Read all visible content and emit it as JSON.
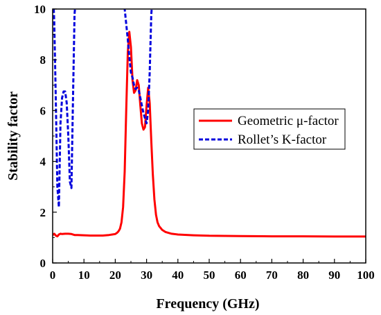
{
  "chart_data": {
    "type": "line",
    "xlabel": "Frequency (GHz)",
    "ylabel": "Stability factor",
    "xlim": [
      0,
      100
    ],
    "ylim": [
      0,
      10
    ],
    "x_ticks": [
      0,
      10,
      20,
      30,
      40,
      50,
      60,
      70,
      80,
      90,
      100
    ],
    "y_ticks": [
      0,
      2,
      4,
      6,
      8,
      10
    ],
    "grid": false,
    "legend_position": "right-center",
    "series": [
      {
        "name": "Geometric μ-factor",
        "color": "#ff0000",
        "style": "solid",
        "x": [
          0,
          0.5,
          1,
          1.5,
          2,
          2.5,
          3,
          4,
          5,
          6,
          7,
          8,
          10,
          12,
          14,
          16,
          18,
          19,
          20,
          20.5,
          21,
          21.5,
          22,
          22.5,
          23,
          23.5,
          24,
          24.5,
          25,
          25.5,
          26,
          26.5,
          27,
          27.5,
          28,
          28.5,
          29,
          29.5,
          30,
          30.5,
          31,
          31.5,
          32,
          32.5,
          33,
          33.5,
          34,
          35,
          36,
          38,
          40,
          45,
          50,
          60,
          70,
          80,
          90,
          100
        ],
        "y": [
          1.1,
          1.15,
          1.08,
          1.05,
          1.12,
          1.15,
          1.14,
          1.15,
          1.15,
          1.14,
          1.1,
          1.1,
          1.09,
          1.08,
          1.08,
          1.08,
          1.1,
          1.12,
          1.14,
          1.18,
          1.24,
          1.35,
          1.6,
          2.2,
          3.6,
          6.0,
          8.3,
          9.1,
          8.5,
          7.2,
          6.7,
          6.8,
          7.2,
          7.0,
          6.2,
          5.5,
          5.25,
          5.35,
          6.2,
          6.9,
          6.3,
          4.8,
          3.5,
          2.5,
          1.9,
          1.6,
          1.45,
          1.3,
          1.22,
          1.15,
          1.12,
          1.09,
          1.07,
          1.06,
          1.05,
          1.05,
          1.04,
          1.04
        ]
      },
      {
        "name": "Rollet’s K-factor",
        "color": "#0000dd",
        "style": "dashed",
        "x": [
          0.2,
          0.5,
          1,
          1.5,
          2,
          2.5,
          3,
          3.5,
          4,
          4.5,
          5,
          5.5,
          6,
          6.5,
          7,
          7.5,
          22,
          23,
          24,
          24.5,
          25,
          25.5,
          26,
          26.5,
          27,
          27.5,
          28,
          28.5,
          29,
          29.5,
          30,
          30.5,
          31,
          31.5,
          32
        ],
        "y": [
          10.5,
          9.5,
          6.5,
          3.0,
          2.2,
          5.5,
          6.5,
          6.75,
          6.75,
          6.3,
          5.0,
          3.2,
          2.95,
          6.5,
          9.8,
          10.5,
          11.5,
          10.0,
          8.8,
          8.1,
          7.5,
          7.3,
          7.0,
          6.85,
          6.9,
          6.8,
          6.5,
          6.2,
          5.9,
          5.7,
          5.5,
          6.0,
          7.5,
          9.8,
          10.5
        ]
      }
    ]
  }
}
